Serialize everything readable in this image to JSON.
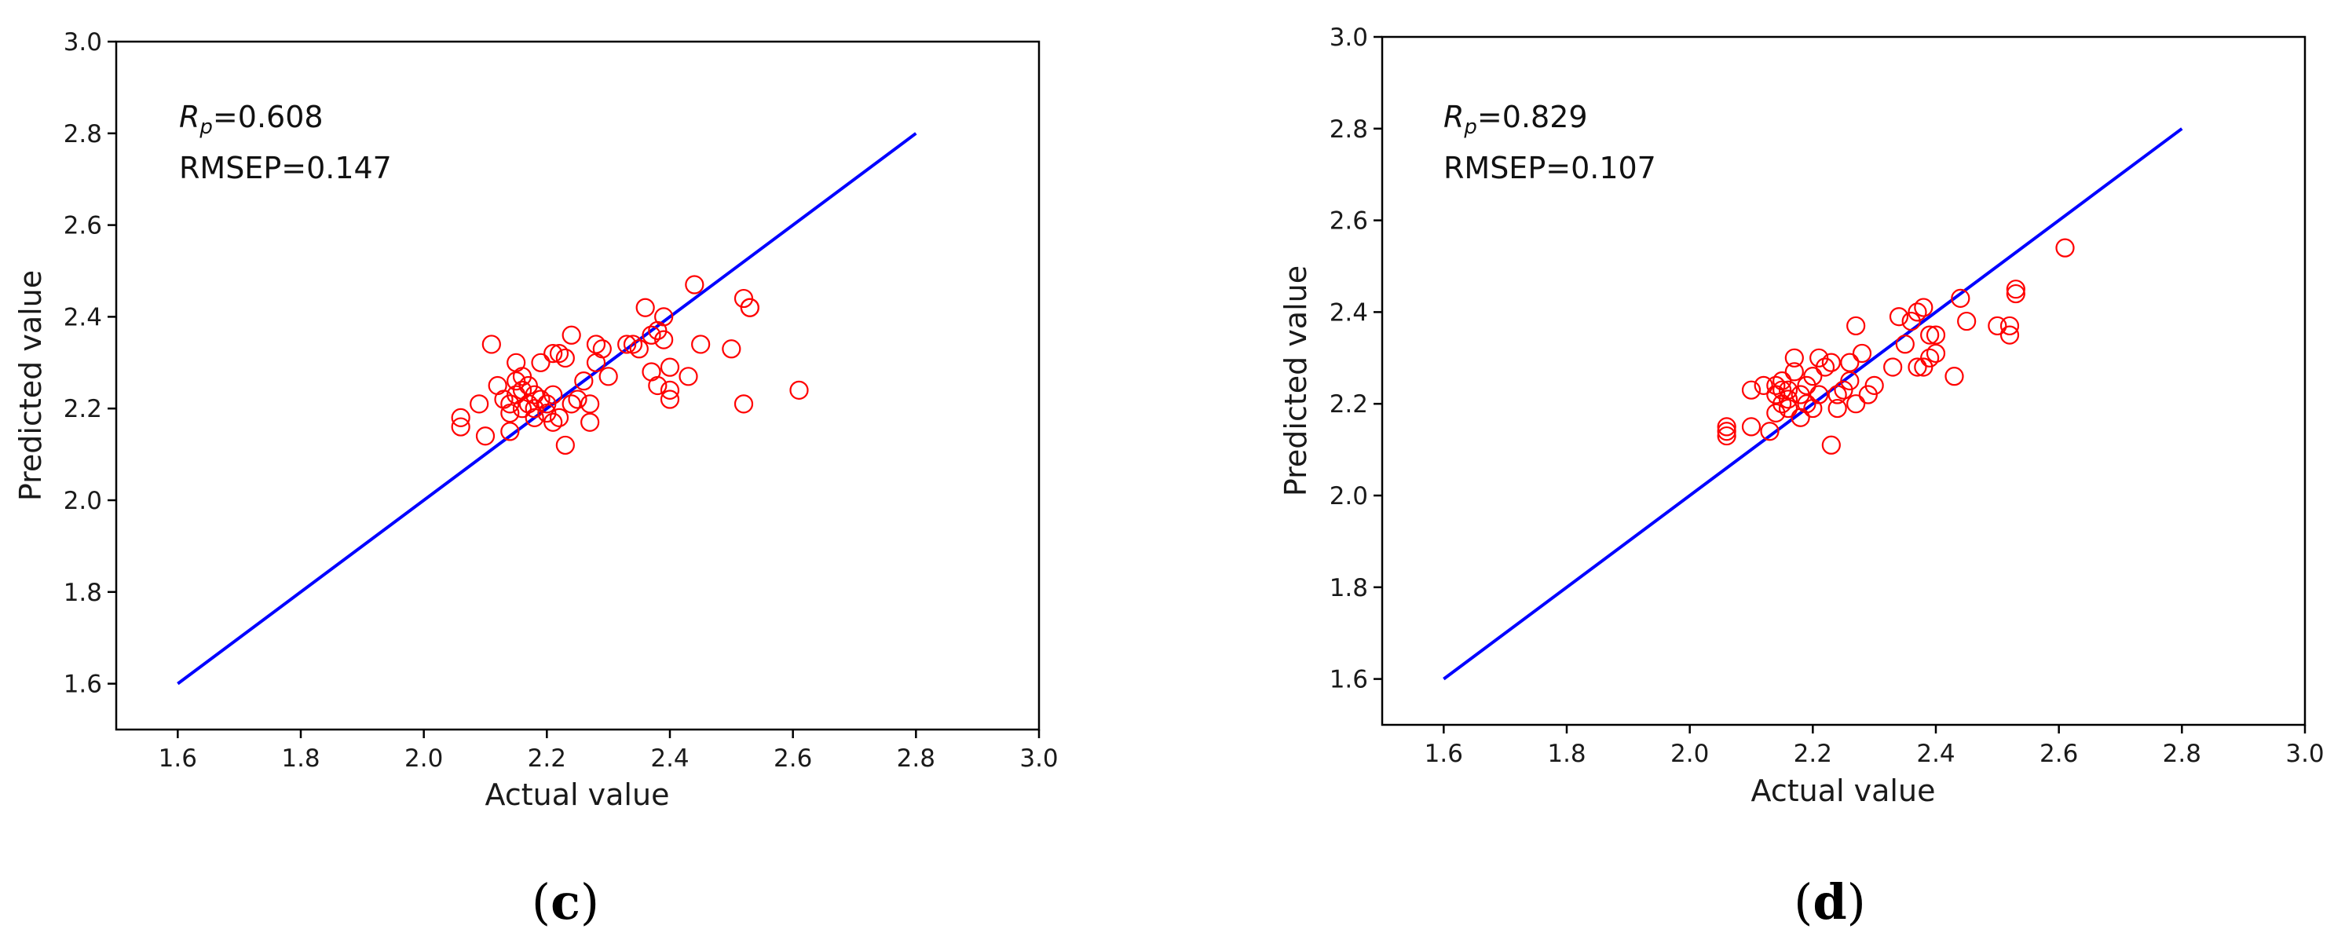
{
  "chart_data": [
    {
      "type": "scatter",
      "panel_label": {
        "open": "(",
        "letter": "c",
        "close": ")"
      },
      "xlabel": "Actual value",
      "ylabel": "Predicted value",
      "xlim": [
        1.5,
        3.0
      ],
      "ylim": [
        1.5,
        3.0
      ],
      "xticks": [
        "1.6",
        "1.8",
        "2.0",
        "2.2",
        "2.4",
        "2.6",
        "2.8",
        "3.0"
      ],
      "yticks": [
        "1.6",
        "1.8",
        "2.0",
        "2.2",
        "2.4",
        "2.6",
        "2.8",
        "3.0"
      ],
      "grid": false,
      "annotation": {
        "rp_symbol": "R",
        "rp_subscript": "p",
        "rp_value": "=0.608",
        "rmsep": "RMSEP=0.147"
      },
      "reference_line": {
        "x": [
          1.6,
          2.8
        ],
        "y": [
          1.6,
          2.8
        ],
        "color": "#0000ff"
      },
      "marker_color": "#ff0000",
      "points": [
        [
          2.06,
          2.16
        ],
        [
          2.06,
          2.18
        ],
        [
          2.09,
          2.21
        ],
        [
          2.1,
          2.14
        ],
        [
          2.11,
          2.34
        ],
        [
          2.12,
          2.25
        ],
        [
          2.13,
          2.22
        ],
        [
          2.14,
          2.15
        ],
        [
          2.14,
          2.19
        ],
        [
          2.14,
          2.21
        ],
        [
          2.15,
          2.23
        ],
        [
          2.15,
          2.3
        ],
        [
          2.15,
          2.26
        ],
        [
          2.16,
          2.2
        ],
        [
          2.16,
          2.24
        ],
        [
          2.16,
          2.27
        ],
        [
          2.17,
          2.21
        ],
        [
          2.17,
          2.25
        ],
        [
          2.18,
          2.18
        ],
        [
          2.18,
          2.23
        ],
        [
          2.18,
          2.2
        ],
        [
          2.19,
          2.22
        ],
        [
          2.19,
          2.3
        ],
        [
          2.2,
          2.21
        ],
        [
          2.2,
          2.19
        ],
        [
          2.21,
          2.32
        ],
        [
          2.21,
          2.17
        ],
        [
          2.21,
          2.23
        ],
        [
          2.22,
          2.32
        ],
        [
          2.22,
          2.18
        ],
        [
          2.23,
          2.31
        ],
        [
          2.23,
          2.12
        ],
        [
          2.24,
          2.36
        ],
        [
          2.24,
          2.21
        ],
        [
          2.25,
          2.22
        ],
        [
          2.26,
          2.26
        ],
        [
          2.27,
          2.21
        ],
        [
          2.27,
          2.17
        ],
        [
          2.28,
          2.34
        ],
        [
          2.28,
          2.3
        ],
        [
          2.29,
          2.33
        ],
        [
          2.3,
          2.27
        ],
        [
          2.33,
          2.34
        ],
        [
          2.34,
          2.34
        ],
        [
          2.35,
          2.33
        ],
        [
          2.36,
          2.42
        ],
        [
          2.37,
          2.28
        ],
        [
          2.37,
          2.36
        ],
        [
          2.38,
          2.25
        ],
        [
          2.38,
          2.37
        ],
        [
          2.39,
          2.4
        ],
        [
          2.39,
          2.35
        ],
        [
          2.4,
          2.29
        ],
        [
          2.4,
          2.22
        ],
        [
          2.4,
          2.24
        ],
        [
          2.43,
          2.27
        ],
        [
          2.44,
          2.47
        ],
        [
          2.45,
          2.34
        ],
        [
          2.5,
          2.33
        ],
        [
          2.52,
          2.21
        ],
        [
          2.52,
          2.44
        ],
        [
          2.53,
          2.42
        ],
        [
          2.53,
          2.42
        ],
        [
          2.61,
          2.24
        ]
      ]
    },
    {
      "type": "scatter",
      "panel_label": {
        "open": "(",
        "letter": "d",
        "close": ")"
      },
      "xlabel": "Actual value",
      "ylabel": "Predicted value",
      "xlim": [
        1.5,
        3.0
      ],
      "ylim": [
        1.5,
        3.0
      ],
      "xticks": [
        "1.6",
        "1.8",
        "2.0",
        "2.2",
        "2.4",
        "2.6",
        "2.8",
        "3.0"
      ],
      "yticks": [
        "1.6",
        "1.8",
        "2.0",
        "2.2",
        "2.4",
        "2.6",
        "2.8",
        "3.0"
      ],
      "grid": false,
      "annotation": {
        "rp_symbol": "R",
        "rp_subscript": "p",
        "rp_value": "=0.829",
        "rmsep": "RMSEP=0.107"
      },
      "reference_line": {
        "x": [
          1.6,
          2.8
        ],
        "y": [
          1.6,
          2.8
        ],
        "color": "#0000ff"
      },
      "marker_color": "#ff0000",
      "points": [
        [
          2.06,
          2.13
        ],
        [
          2.06,
          2.15
        ],
        [
          2.06,
          2.14
        ],
        [
          2.1,
          2.23
        ],
        [
          2.1,
          2.15
        ],
        [
          2.12,
          2.24
        ],
        [
          2.13,
          2.14
        ],
        [
          2.14,
          2.22
        ],
        [
          2.14,
          2.18
        ],
        [
          2.14,
          2.24
        ],
        [
          2.15,
          2.2
        ],
        [
          2.15,
          2.23
        ],
        [
          2.15,
          2.25
        ],
        [
          2.16,
          2.21
        ],
        [
          2.16,
          2.19
        ],
        [
          2.16,
          2.23
        ],
        [
          2.17,
          2.27
        ],
        [
          2.17,
          2.3
        ],
        [
          2.18,
          2.22
        ],
        [
          2.18,
          2.17
        ],
        [
          2.19,
          2.24
        ],
        [
          2.19,
          2.2
        ],
        [
          2.2,
          2.26
        ],
        [
          2.2,
          2.19
        ],
        [
          2.21,
          2.3
        ],
        [
          2.21,
          2.22
        ],
        [
          2.22,
          2.28
        ],
        [
          2.23,
          2.11
        ],
        [
          2.23,
          2.29
        ],
        [
          2.24,
          2.19
        ],
        [
          2.24,
          2.22
        ],
        [
          2.25,
          2.23
        ],
        [
          2.26,
          2.29
        ],
        [
          2.26,
          2.25
        ],
        [
          2.27,
          2.37
        ],
        [
          2.27,
          2.2
        ],
        [
          2.28,
          2.31
        ],
        [
          2.29,
          2.22
        ],
        [
          2.3,
          2.24
        ],
        [
          2.33,
          2.28
        ],
        [
          2.34,
          2.39
        ],
        [
          2.35,
          2.33
        ],
        [
          2.36,
          2.38
        ],
        [
          2.37,
          2.28
        ],
        [
          2.37,
          2.4
        ],
        [
          2.38,
          2.41
        ],
        [
          2.38,
          2.28
        ],
        [
          2.39,
          2.3
        ],
        [
          2.39,
          2.35
        ],
        [
          2.4,
          2.31
        ],
        [
          2.4,
          2.35
        ],
        [
          2.43,
          2.26
        ],
        [
          2.44,
          2.43
        ],
        [
          2.45,
          2.38
        ],
        [
          2.5,
          2.37
        ],
        [
          2.52,
          2.37
        ],
        [
          2.52,
          2.35
        ],
        [
          2.53,
          2.45
        ],
        [
          2.53,
          2.44
        ],
        [
          2.61,
          2.54
        ]
      ]
    }
  ]
}
